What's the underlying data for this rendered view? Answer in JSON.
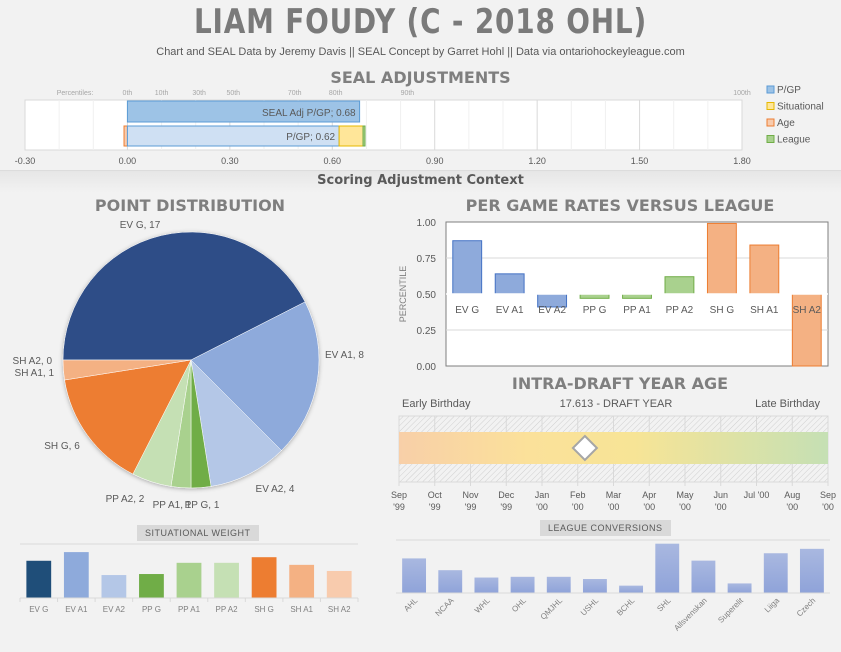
{
  "header": {
    "title": "LIAM FOUDY (C - 2018 OHL)",
    "subtitle": "Chart and SEAL Data by Jeremy Davis || SEAL Concept by Garret Hohl || Data via ontariohockeyleague.com",
    "scoring_context": "Scoring Adjustment Context"
  },
  "colors": {
    "ev_g": "#2e4d87",
    "ev_a1": "#8eaadb",
    "ev_a2": "#b4c7e7",
    "pp_g": "#70ad47",
    "pp_a1": "#a9d18e",
    "pp_a2": "#c5e0b4",
    "sh_g": "#ed7d31",
    "sh_a1": "#f4b183",
    "sh_a2": "#f8cbad",
    "pgp": "#9dc3e6",
    "situational": "#ffe699",
    "age": "#f8cbad",
    "league": "#a9d18e"
  },
  "chart_data": [
    {
      "id": "seal",
      "type": "bar",
      "title": "SEAL ADJUSTMENTS",
      "orientation": "horizontal",
      "xlim": [
        -0.3,
        1.8
      ],
      "x_ticks": [
        "-0.30",
        "0.00",
        "0.30",
        "0.60",
        "0.90",
        "1.20",
        "1.50",
        "1.80"
      ],
      "percentile_label": "Percentiles:",
      "percentiles": [
        {
          "label": "0th",
          "value": 0.0
        },
        {
          "label": "10th",
          "value": 0.1
        },
        {
          "label": "30th",
          "value": 0.21
        },
        {
          "label": "50th",
          "value": 0.31
        },
        {
          "label": "70th",
          "value": 0.49
        },
        {
          "label": "80th",
          "value": 0.61
        },
        {
          "label": "90th",
          "value": 0.82
        },
        {
          "label": "100th",
          "value": 1.8
        }
      ],
      "seal_adj": {
        "label": "SEAL Adj P/GP; 0.68",
        "value": 0.68
      },
      "stacked": [
        {
          "name": "Age",
          "start": -0.01,
          "value": 0.01
        },
        {
          "name": "P/GP",
          "label": "P/GP; 0.62",
          "start": 0.0,
          "value": 0.62
        },
        {
          "name": "Situational",
          "start": 0.62,
          "value": 0.07
        },
        {
          "name": "League",
          "start": 0.69,
          "value": 0.005
        }
      ],
      "legend": [
        "P/GP",
        "Situational",
        "Age",
        "League"
      ],
      "legend_position": "right"
    },
    {
      "id": "point_distribution",
      "type": "pie",
      "title": "POINT DISTRIBUTION",
      "slices": [
        {
          "name": "EV G",
          "value": 17,
          "label": "EV G, 17",
          "color_key": "ev_g"
        },
        {
          "name": "EV A1",
          "value": 8,
          "label": "EV A1, 8",
          "color_key": "ev_a1"
        },
        {
          "name": "EV A2",
          "value": 4,
          "label": "EV A2, 4",
          "color_key": "ev_a2"
        },
        {
          "name": "PP G",
          "value": 1,
          "label": "PP G, 1",
          "color_key": "pp_g"
        },
        {
          "name": "PP A1",
          "value": 1,
          "label": "PP A1, 1",
          "color_key": "pp_a1"
        },
        {
          "name": "PP A2",
          "value": 2,
          "label": "PP A2, 2",
          "color_key": "pp_a2"
        },
        {
          "name": "SH G",
          "value": 6,
          "label": "SH G, 6",
          "color_key": "sh_g"
        },
        {
          "name": "SH A1",
          "value": 1,
          "label": "SH A1, 1",
          "color_key": "sh_a1"
        },
        {
          "name": "SH A2",
          "value": 0,
          "label": "SH A2, 0",
          "color_key": "sh_a2"
        }
      ]
    },
    {
      "id": "per_game_rates",
      "type": "bar",
      "title": "PER GAME RATES VERSUS LEAGUE",
      "ylabel": "PERCENTILE",
      "ylim": [
        0,
        1
      ],
      "baseline": 0.5,
      "y_ticks": [
        "0.00",
        "0.25",
        "0.50",
        "0.75",
        "1.00"
      ],
      "categories": [
        "EV G",
        "EV A1",
        "EV A2",
        "PP G",
        "PP A1",
        "PP A2",
        "SH G",
        "SH A1",
        "SH A2"
      ],
      "values": [
        0.87,
        0.64,
        0.41,
        0.47,
        0.47,
        0.62,
        0.99,
        0.84,
        0.0
      ],
      "color_keys": [
        "ev_a1",
        "ev_a1",
        "ev_a1",
        "pp_a1",
        "pp_a1",
        "pp_a1",
        "sh_a1",
        "sh_a1",
        "sh_a1"
      ],
      "grid": true
    },
    {
      "id": "intra_draft_age",
      "type": "bar",
      "title": "INTRA-DRAFT YEAR AGE",
      "left_label": "Early Birthday",
      "center_label": "17.613 - DRAFT YEAR",
      "right_label": "Late Birthday",
      "months": [
        [
          "Sep",
          "'99"
        ],
        [
          "Oct",
          "'99"
        ],
        [
          "Nov",
          "'99"
        ],
        [
          "Dec",
          "'99"
        ],
        [
          "Jan",
          "'00"
        ],
        [
          "Feb",
          "'00"
        ],
        [
          "Mar",
          "'00"
        ],
        [
          "Apr",
          "'00"
        ],
        [
          "May",
          "'00"
        ],
        [
          "Jun",
          "'00"
        ],
        [
          "Jul",
          "'00"
        ],
        [
          "Aug",
          "'00"
        ],
        [
          "Sep",
          "'00"
        ]
      ],
      "marker_month_position": 5.2
    },
    {
      "id": "situational_weight",
      "type": "bar",
      "title": "SITUATIONAL  WEIGHT",
      "categories": [
        "EV G",
        "EV A1",
        "EV A2",
        "PP G",
        "PP A1",
        "PP A2",
        "SH G",
        "SH A1",
        "SH A2"
      ],
      "values": [
        0.73,
        0.9,
        0.45,
        0.47,
        0.69,
        0.69,
        0.8,
        0.65,
        0.53
      ],
      "color_keys": [
        "ev_g",
        "ev_a1",
        "ev_a2",
        "pp_g",
        "pp_a1",
        "pp_a2",
        "sh_g",
        "sh_a1",
        "sh_a2"
      ],
      "ylim": [
        0,
        1
      ]
    },
    {
      "id": "league_conversions",
      "type": "bar",
      "title": "LEAGUE CONVERSIONS",
      "categories": [
        "AHL",
        "NCAA",
        "WHL",
        "OHL",
        "QMJHL",
        "USHL",
        "BCHL",
        "SHL",
        "Allsvenskan",
        "Superelit",
        "Liiga",
        "Czech"
      ],
      "values": [
        0.47,
        0.31,
        0.21,
        0.22,
        0.22,
        0.19,
        0.1,
        0.67,
        0.44,
        0.13,
        0.54,
        0.6
      ],
      "ylim": [
        0,
        0.72
      ]
    }
  ]
}
